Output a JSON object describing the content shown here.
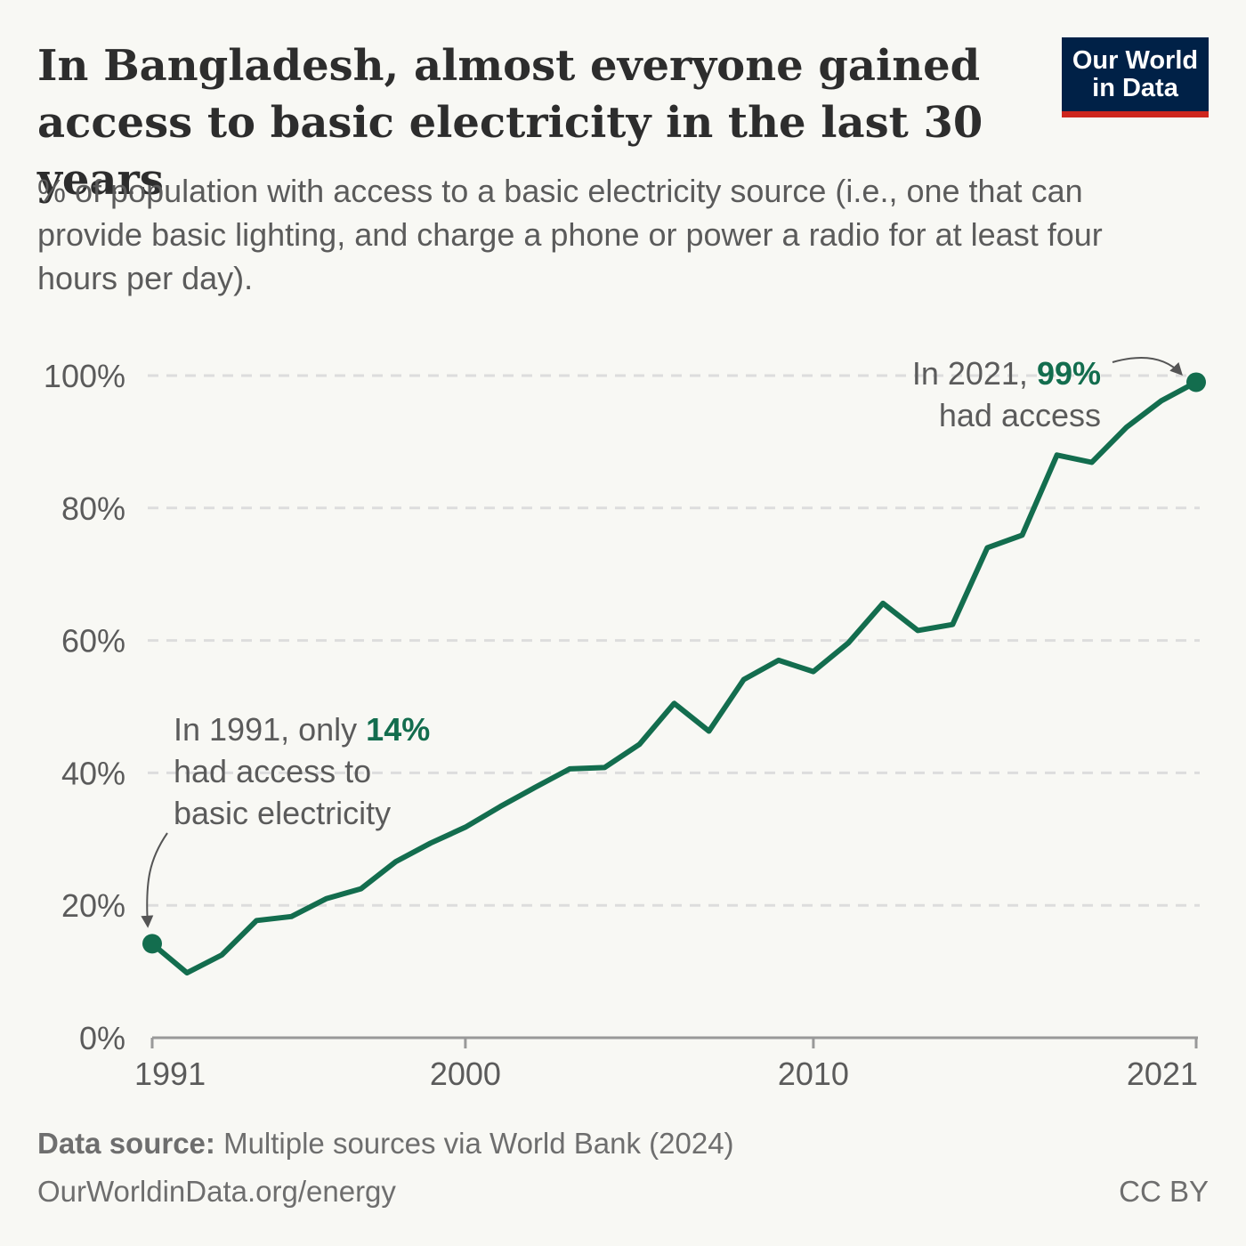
{
  "header": {
    "title": "In Bangladesh, almost everyone gained access to basic electricity in the last 30 years",
    "subtitle": "% of population with access to a basic electricity source (i.e., one that can provide basic lighting, and charge a phone or power a radio for at least four hours per day).",
    "logo_line1": "Our World",
    "logo_line2": "in Data"
  },
  "footer": {
    "source_label": "Data source:",
    "source_text": "Multiple sources via World Bank (2024)",
    "url": "OurWorldinData.org/energy",
    "license": "CC BY"
  },
  "colors": {
    "line": "#136d4e",
    "grid": "#dddddd",
    "axis": "#999999",
    "title": "#2d2d2d",
    "text": "#5b5b5b",
    "logo_bg": "#002147",
    "logo_accent": "#ce261e"
  },
  "chart_data": {
    "type": "line",
    "title": "In Bangladesh, almost everyone gained access to basic electricity in the last 30 years",
    "subtitle": "% of population with access to a basic electricity source (i.e., one that can provide basic lighting, and charge a phone or power a radio for at least four hours per day).",
    "xlabel": "",
    "ylabel": "",
    "xlim": [
      1991,
      2021
    ],
    "ylim": [
      0,
      100
    ],
    "x_ticks": [
      1991,
      2000,
      2010,
      2021
    ],
    "y_ticks": [
      0,
      20,
      40,
      60,
      80,
      100
    ],
    "y_tick_labels": [
      "0%",
      "20%",
      "40%",
      "60%",
      "80%",
      "100%"
    ],
    "grid": "horizontal dashed",
    "legend": "none",
    "series": [
      {
        "x": [
          1991,
          1992,
          1993,
          1994,
          1995,
          1996,
          1997,
          1998,
          1999,
          2000,
          2001,
          2002,
          2003,
          2004,
          2005,
          2006,
          2007,
          2008,
          2009,
          2010,
          2011,
          2012,
          2013,
          2014,
          2015,
          2016,
          2017,
          2018,
          2019,
          2020,
          2021
        ],
        "values": [
          14.2,
          9.8,
          12.5,
          17.7,
          18.3,
          21.0,
          22.5,
          26.6,
          29.4,
          31.8,
          34.9,
          37.8,
          40.6,
          40.8,
          44.3,
          50.5,
          46.3,
          54.1,
          57.0,
          55.3,
          59.6,
          65.6,
          61.5,
          62.4,
          74.0,
          75.9,
          88.0,
          86.9,
          92.2,
          96.2,
          99.0
        ]
      }
    ],
    "annotations": [
      {
        "id": "start",
        "lines": [
          "In 1991, only ",
          "14%",
          "had access to",
          "basic electricity"
        ]
      },
      {
        "id": "end",
        "lines": [
          "In 2021, ",
          "99%",
          "had access"
        ]
      }
    ]
  }
}
